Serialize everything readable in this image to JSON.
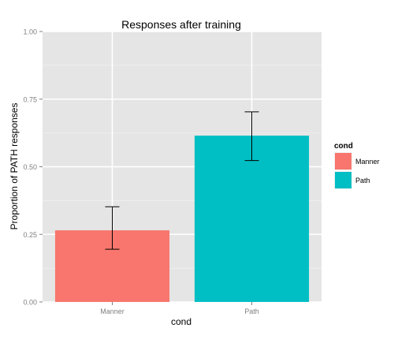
{
  "chart_data": {
    "type": "bar",
    "title": "Responses after training",
    "xlabel": "cond",
    "ylabel": "Proportion of PATH responses",
    "categories": [
      "Manner",
      "Path"
    ],
    "values": [
      0.265,
      0.615
    ],
    "error_low": [
      0.195,
      0.523
    ],
    "error_high": [
      0.352,
      0.703
    ],
    "ylim": [
      0,
      1
    ],
    "yticks": [
      0,
      0.25,
      0.5,
      0.75,
      1
    ],
    "ytick_labels": [
      "0.00",
      "0.25",
      "0.50",
      "0.75",
      "1.00"
    ],
    "grid": true,
    "legend": {
      "title": "cond",
      "placement": "right",
      "items": [
        {
          "label": "Manner",
          "color": "#F8766D"
        },
        {
          "label": "Path",
          "color": "#00BFC4"
        }
      ]
    },
    "colors": {
      "panel_bg": "#E5E5E5",
      "grid_major": "#FFFFFF",
      "grid_minor": "#F2F2F2",
      "bars": [
        "#F8766D",
        "#00BFC4"
      ],
      "error_bar": "#000000",
      "tick_text": "#7F7F7F"
    }
  }
}
